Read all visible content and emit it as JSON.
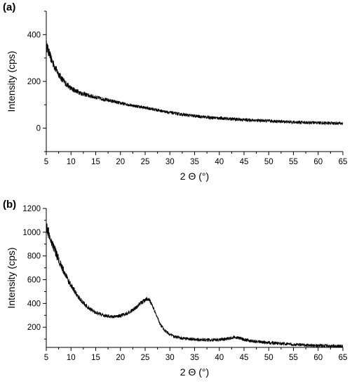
{
  "chart_data": [
    {
      "type": "line",
      "panel_label": "(a)",
      "xlabel": "2 Θ (°)",
      "ylabel": "Intensity (cps)",
      "xlim": [
        5,
        65
      ],
      "ylim": [
        -100,
        500
      ],
      "xticks": [
        5,
        10,
        15,
        20,
        25,
        30,
        35,
        40,
        45,
        50,
        55,
        60,
        65
      ],
      "yticks": [
        0,
        200,
        400
      ],
      "grid": false,
      "line_color": "#000000",
      "series": [
        {
          "x": [
            5,
            6,
            7,
            8,
            9,
            10,
            12,
            14,
            16,
            18,
            20,
            22,
            24,
            26,
            28,
            30,
            32,
            35,
            38,
            40,
            42,
            45,
            48,
            50,
            52,
            55,
            58,
            60,
            62,
            65
          ],
          "y": [
            355,
            295,
            250,
            215,
            190,
            170,
            150,
            137,
            127,
            117,
            107,
            99,
            91,
            84,
            75,
            67,
            60,
            52,
            46,
            43,
            40,
            36,
            33,
            31,
            29,
            26,
            24,
            23,
            22,
            20
          ]
        }
      ]
    },
    {
      "type": "line",
      "panel_label": "(b)",
      "xlabel": "2 Θ (°)",
      "ylabel": "Intensity (cps)",
      "xlim": [
        5,
        65
      ],
      "ylim": [
        30,
        1200
      ],
      "xticks": [
        5,
        10,
        15,
        20,
        25,
        30,
        35,
        40,
        45,
        50,
        55,
        60,
        65
      ],
      "yticks": [
        200,
        400,
        600,
        800,
        1000,
        1200
      ],
      "grid": false,
      "line_color": "#000000",
      "series": [
        {
          "x": [
            5,
            6,
            7,
            8,
            9,
            10,
            11,
            12,
            13,
            14,
            15,
            16,
            17,
            18,
            19,
            20,
            21,
            22,
            23,
            24,
            25,
            25.5,
            26,
            27,
            28,
            29,
            30,
            31,
            32,
            34,
            36,
            38,
            40,
            42,
            43,
            44,
            45,
            47,
            50,
            55,
            60,
            65
          ],
          "y": [
            1050,
            930,
            820,
            720,
            630,
            550,
            485,
            430,
            385,
            350,
            325,
            308,
            295,
            290,
            290,
            297,
            310,
            330,
            360,
            395,
            430,
            440,
            420,
            330,
            230,
            170,
            140,
            120,
            110,
            100,
            95,
            93,
            95,
            105,
            115,
            110,
            95,
            80,
            70,
            55,
            45,
            40
          ]
        }
      ]
    }
  ]
}
